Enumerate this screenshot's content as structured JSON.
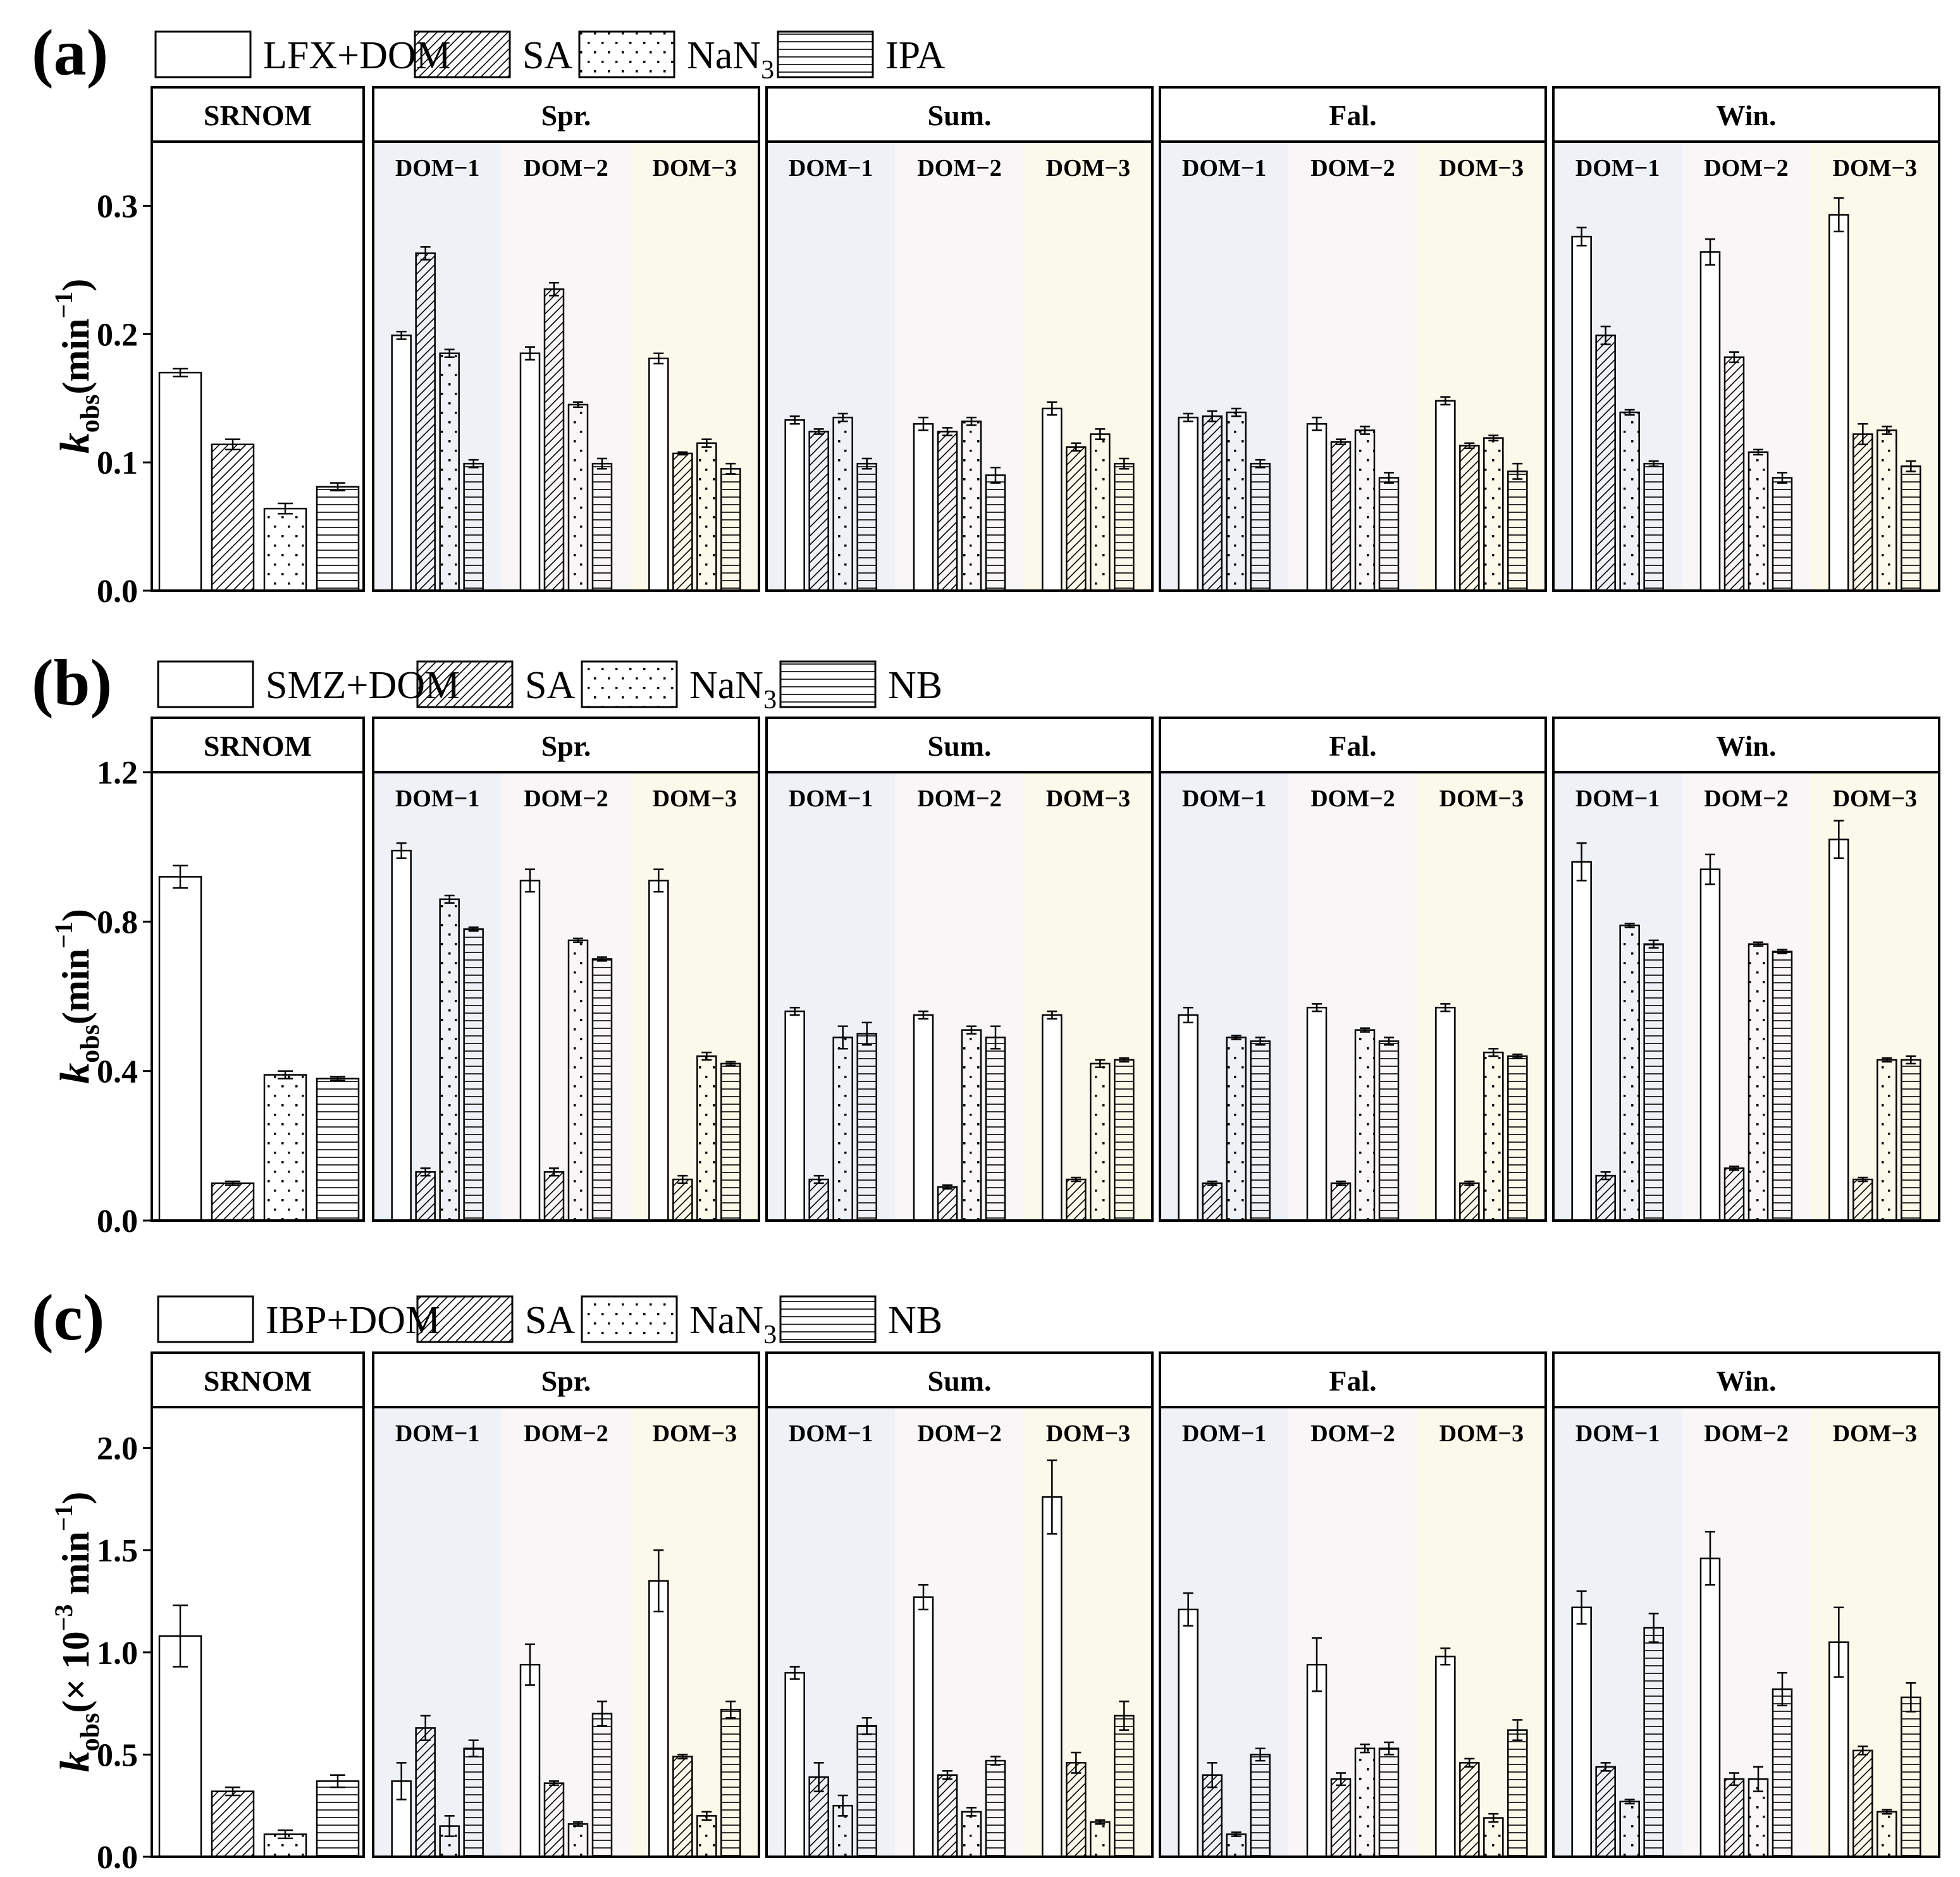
{
  "colors": {
    "dom1_bg": "#eef2f6",
    "dom2_bg": "#f9f6f8",
    "dom3_bg": "#faf9ea",
    "stroke": "#000000",
    "bar_fill": "#ffffff"
  },
  "group_labels": [
    "DOM−1",
    "DOM−2",
    "DOM−3"
  ],
  "chart_data": [
    {
      "type": "bar",
      "panel_label": "(a)",
      "ylabel_main": "k",
      "ylabel_sub": "obs",
      "ylabel_unit_pre": "(min",
      "ylabel_unit_sup": "−1",
      "ylabel_unit_post": ")",
      "ylabel_mult": "",
      "ylabel_mult_sup": "",
      "ylim": [
        0,
        0.35
      ],
      "yticks": [
        0.0,
        0.1,
        0.2,
        0.3
      ],
      "ytick_labels": [
        "0.0",
        "0.1",
        "0.2",
        "0.3"
      ],
      "legend": [
        {
          "name": "LFX+DOM",
          "pattern": "none",
          "sub": ""
        },
        {
          "name": "SA",
          "pattern": "hatch",
          "sub": ""
        },
        {
          "name": "NaN",
          "pattern": "dots",
          "sub": "3"
        },
        {
          "name": "IPA",
          "pattern": "hlines",
          "sub": ""
        }
      ],
      "facets": [
        {
          "title": "SRNOM",
          "groups": [
            {
              "values": [
                0.17,
                0.114,
                0.064,
                0.081
              ],
              "errors": [
                0.003,
                0.004,
                0.004,
                0.003
              ]
            }
          ]
        },
        {
          "title": "Spr.",
          "groups": [
            {
              "label": "DOM−1",
              "values": [
                0.199,
                0.263,
                0.185,
                0.099
              ],
              "errors": [
                0.003,
                0.005,
                0.003,
                0.003
              ]
            },
            {
              "label": "DOM−2",
              "values": [
                0.185,
                0.235,
                0.145,
                0.099
              ],
              "errors": [
                0.005,
                0.005,
                0.002,
                0.004
              ]
            },
            {
              "label": "DOM−3",
              "values": [
                0.181,
                0.107,
                0.115,
                0.095
              ],
              "errors": [
                0.004,
                0.001,
                0.003,
                0.004
              ]
            }
          ]
        },
        {
          "title": "Sum.",
          "groups": [
            {
              "label": "DOM−1",
              "values": [
                0.133,
                0.124,
                0.135,
                0.099
              ],
              "errors": [
                0.003,
                0.002,
                0.003,
                0.004
              ]
            },
            {
              "label": "DOM−2",
              "values": [
                0.13,
                0.124,
                0.132,
                0.09
              ],
              "errors": [
                0.005,
                0.003,
                0.003,
                0.006
              ]
            },
            {
              "label": "DOM−3",
              "values": [
                0.142,
                0.112,
                0.122,
                0.099
              ],
              "errors": [
                0.005,
                0.003,
                0.004,
                0.004
              ]
            }
          ]
        },
        {
          "title": "Fal.",
          "groups": [
            {
              "label": "DOM−1",
              "values": [
                0.135,
                0.136,
                0.139,
                0.099
              ],
              "errors": [
                0.003,
                0.004,
                0.003,
                0.003
              ]
            },
            {
              "label": "DOM−2",
              "values": [
                0.13,
                0.116,
                0.125,
                0.088
              ],
              "errors": [
                0.005,
                0.002,
                0.003,
                0.004
              ]
            },
            {
              "label": "DOM−3",
              "values": [
                0.148,
                0.113,
                0.119,
                0.093
              ],
              "errors": [
                0.003,
                0.002,
                0.002,
                0.006
              ]
            }
          ]
        },
        {
          "title": "Win.",
          "groups": [
            {
              "label": "DOM−1",
              "values": [
                0.276,
                0.199,
                0.139,
                0.099
              ],
              "errors": [
                0.007,
                0.007,
                0.002,
                0.002
              ]
            },
            {
              "label": "DOM−2",
              "values": [
                0.264,
                0.182,
                0.108,
                0.088
              ],
              "errors": [
                0.01,
                0.004,
                0.002,
                0.004
              ]
            },
            {
              "label": "DOM−3",
              "values": [
                0.293,
                0.122,
                0.125,
                0.097
              ],
              "errors": [
                0.013,
                0.008,
                0.003,
                0.004
              ]
            }
          ]
        }
      ]
    },
    {
      "type": "bar",
      "panel_label": "(b)",
      "ylabel_main": "k",
      "ylabel_sub": "obs",
      "ylabel_unit_pre": "(min",
      "ylabel_unit_sup": "−1",
      "ylabel_unit_post": ")",
      "ylabel_mult": "",
      "ylabel_mult_sup": "",
      "ylim": [
        0,
        1.2
      ],
      "yticks": [
        0.0,
        0.4,
        0.8,
        1.2
      ],
      "ytick_labels": [
        "0.0",
        "0.4",
        "0.8",
        "1.2"
      ],
      "legend": [
        {
          "name": "SMZ+DOM",
          "pattern": "none",
          "sub": ""
        },
        {
          "name": "SA",
          "pattern": "hatch",
          "sub": ""
        },
        {
          "name": "NaN",
          "pattern": "dots",
          "sub": "3"
        },
        {
          "name": "NB",
          "pattern": "hlines",
          "sub": ""
        }
      ],
      "facets": [
        {
          "title": "SRNOM",
          "groups": [
            {
              "values": [
                0.92,
                0.1,
                0.39,
                0.38
              ],
              "errors": [
                0.03,
                0.005,
                0.01,
                0.005
              ]
            }
          ]
        },
        {
          "title": "Spr.",
          "groups": [
            {
              "label": "DOM−1",
              "values": [
                0.99,
                0.13,
                0.86,
                0.78
              ],
              "errors": [
                0.02,
                0.01,
                0.01,
                0.005
              ]
            },
            {
              "label": "DOM−2",
              "values": [
                0.91,
                0.13,
                0.75,
                0.7
              ],
              "errors": [
                0.03,
                0.01,
                0.005,
                0.005
              ]
            },
            {
              "label": "DOM−3",
              "values": [
                0.91,
                0.11,
                0.44,
                0.42
              ],
              "errors": [
                0.03,
                0.01,
                0.01,
                0.005
              ]
            }
          ]
        },
        {
          "title": "Sum.",
          "groups": [
            {
              "label": "DOM−1",
              "values": [
                0.56,
                0.11,
                0.49,
                0.5
              ],
              "errors": [
                0.01,
                0.01,
                0.03,
                0.03
              ]
            },
            {
              "label": "DOM−2",
              "values": [
                0.55,
                0.09,
                0.51,
                0.49
              ],
              "errors": [
                0.01,
                0.005,
                0.01,
                0.03
              ]
            },
            {
              "label": "DOM−3",
              "values": [
                0.55,
                0.11,
                0.42,
                0.43
              ],
              "errors": [
                0.01,
                0.005,
                0.01,
                0.005
              ]
            }
          ]
        },
        {
          "title": "Fal.",
          "groups": [
            {
              "label": "DOM−1",
              "values": [
                0.55,
                0.1,
                0.49,
                0.48
              ],
              "errors": [
                0.02,
                0.005,
                0.005,
                0.01
              ]
            },
            {
              "label": "DOM−2",
              "values": [
                0.57,
                0.1,
                0.51,
                0.48
              ],
              "errors": [
                0.01,
                0.005,
                0.005,
                0.01
              ]
            },
            {
              "label": "DOM−3",
              "values": [
                0.57,
                0.1,
                0.45,
                0.44
              ],
              "errors": [
                0.01,
                0.005,
                0.01,
                0.005
              ]
            }
          ]
        },
        {
          "title": "Win.",
          "groups": [
            {
              "label": "DOM−1",
              "values": [
                0.96,
                0.12,
                0.79,
                0.74
              ],
              "errors": [
                0.05,
                0.01,
                0.005,
                0.01
              ]
            },
            {
              "label": "DOM−2",
              "values": [
                0.94,
                0.14,
                0.74,
                0.72
              ],
              "errors": [
                0.04,
                0.005,
                0.005,
                0.005
              ]
            },
            {
              "label": "DOM−3",
              "values": [
                1.02,
                0.11,
                0.43,
                0.43
              ],
              "errors": [
                0.05,
                0.005,
                0.005,
                0.01
              ]
            }
          ]
        }
      ]
    },
    {
      "type": "bar",
      "panel_label": "(c)",
      "ylabel_main": "k",
      "ylabel_sub": "obs",
      "ylabel_unit_pre": "(× 10",
      "ylabel_unit_sup": "−3",
      "ylabel_unit_post": " min",
      "ylabel_mult": "−1",
      "ylabel_mult_sup": ")",
      "ylim": [
        0,
        2.2
      ],
      "yticks": [
        0.0,
        0.5,
        1.0,
        1.5,
        2.0
      ],
      "ytick_labels": [
        "0.0",
        "0.5",
        "1.0",
        "1.5",
        "2.0"
      ],
      "legend": [
        {
          "name": "IBP+DOM",
          "pattern": "none",
          "sub": ""
        },
        {
          "name": "SA",
          "pattern": "hatch",
          "sub": ""
        },
        {
          "name": "NaN",
          "pattern": "dots",
          "sub": "3"
        },
        {
          "name": "NB",
          "pattern": "hlines",
          "sub": ""
        }
      ],
      "facets": [
        {
          "title": "SRNOM",
          "groups": [
            {
              "values": [
                1.08,
                0.32,
                0.11,
                0.37
              ],
              "errors": [
                0.15,
                0.02,
                0.02,
                0.03
              ]
            }
          ]
        },
        {
          "title": "Spr.",
          "groups": [
            {
              "label": "DOM−1",
              "values": [
                0.37,
                0.63,
                0.15,
                0.53
              ],
              "errors": [
                0.09,
                0.06,
                0.05,
                0.04
              ]
            },
            {
              "label": "DOM−2",
              "values": [
                0.94,
                0.36,
                0.16,
                0.7
              ],
              "errors": [
                0.1,
                0.01,
                0.01,
                0.06
              ]
            },
            {
              "label": "DOM−3",
              "values": [
                1.35,
                0.49,
                0.2,
                0.72
              ],
              "errors": [
                0.15,
                0.01,
                0.02,
                0.04
              ]
            }
          ]
        },
        {
          "title": "Sum.",
          "groups": [
            {
              "label": "DOM−1",
              "values": [
                0.9,
                0.39,
                0.25,
                0.64
              ],
              "errors": [
                0.03,
                0.07,
                0.05,
                0.04
              ]
            },
            {
              "label": "DOM−2",
              "values": [
                1.27,
                0.4,
                0.22,
                0.47
              ],
              "errors": [
                0.06,
                0.02,
                0.02,
                0.02
              ]
            },
            {
              "label": "DOM−3",
              "values": [
                1.76,
                0.46,
                0.17,
                0.69
              ],
              "errors": [
                0.18,
                0.05,
                0.01,
                0.07
              ]
            }
          ]
        },
        {
          "title": "Fal.",
          "groups": [
            {
              "label": "DOM−1",
              "values": [
                1.21,
                0.4,
                0.11,
                0.5
              ],
              "errors": [
                0.08,
                0.06,
                0.01,
                0.03
              ]
            },
            {
              "label": "DOM−2",
              "values": [
                0.94,
                0.38,
                0.53,
                0.53
              ],
              "errors": [
                0.13,
                0.03,
                0.02,
                0.03
              ]
            },
            {
              "label": "DOM−3",
              "values": [
                0.98,
                0.46,
                0.19,
                0.62
              ],
              "errors": [
                0.04,
                0.02,
                0.02,
                0.05
              ]
            }
          ]
        },
        {
          "title": "Win.",
          "groups": [
            {
              "label": "DOM−1",
              "values": [
                1.22,
                0.44,
                0.27,
                1.12
              ],
              "errors": [
                0.08,
                0.02,
                0.01,
                0.07
              ]
            },
            {
              "label": "DOM−2",
              "values": [
                1.46,
                0.38,
                0.38,
                0.82
              ],
              "errors": [
                0.13,
                0.03,
                0.06,
                0.08
              ]
            },
            {
              "label": "DOM−3",
              "values": [
                1.05,
                0.52,
                0.22,
                0.78
              ],
              "errors": [
                0.17,
                0.02,
                0.01,
                0.07
              ]
            }
          ]
        }
      ]
    }
  ]
}
